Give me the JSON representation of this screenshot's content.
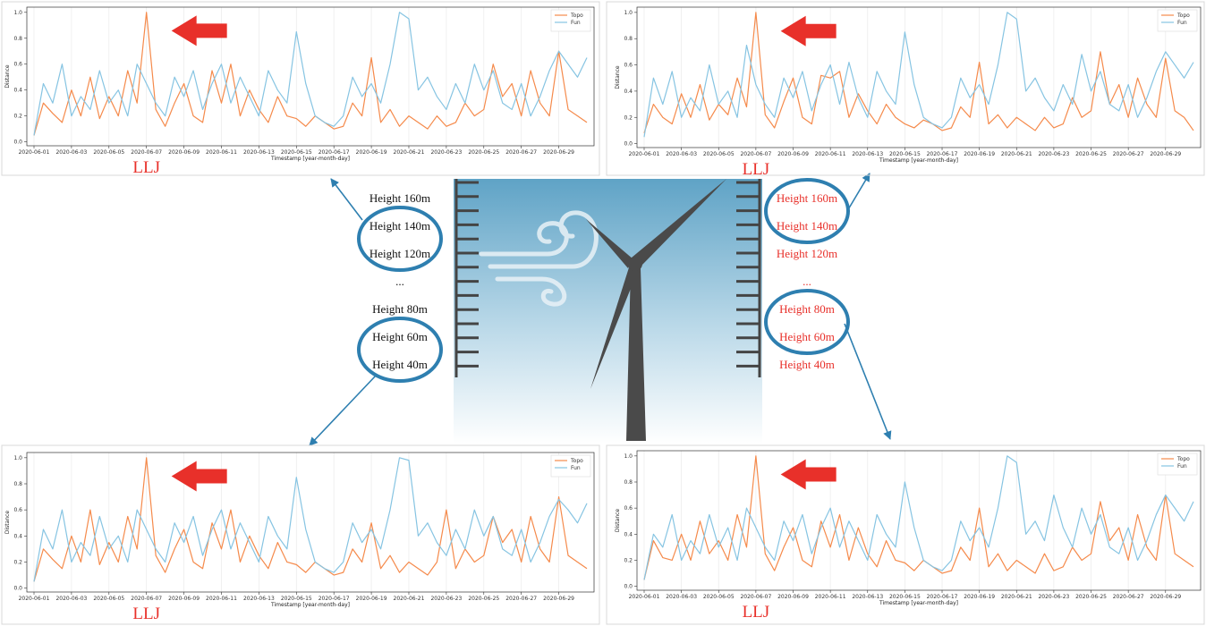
{
  "chart_data": [
    {
      "type": "line",
      "ylabel": "Distance",
      "xlabel": "Timestamp [year-month-day]",
      "annotation": "LLJ",
      "annotation_color": "#e8302a",
      "grid": true,
      "legend": "upper right",
      "categories": [
        "2020-06-01",
        null,
        null,
        null,
        "2020-06-03",
        null,
        null,
        null,
        "2020-06-05",
        null,
        null,
        null,
        "2020-06-07",
        null,
        null,
        null,
        "2020-06-09",
        null,
        null,
        null,
        "2020-06-11",
        null,
        null,
        null,
        "2020-06-13",
        null,
        null,
        null,
        "2020-06-15",
        null,
        null,
        null,
        "2020-06-17",
        null,
        null,
        null,
        "2020-06-19",
        null,
        null,
        null,
        "2020-06-21",
        null,
        null,
        null,
        "2020-06-23",
        null,
        null,
        null,
        "2020-06-25",
        null,
        null,
        null,
        "2020-06-27",
        null,
        null,
        null,
        "2020-06-29",
        null,
        null,
        null
      ],
      "ylim": [
        -0.03,
        1.04
      ],
      "yticks": [
        {
          "value": 0,
          "label": "0.0"
        },
        0.2,
        0.4,
        0.6,
        0.8,
        {
          "value": 1,
          "label": "1.0"
        }
      ],
      "series": [
        {
          "name": "Topo",
          "color": "#f58a4b",
          "values": [
            0.05,
            0.3,
            0.22,
            0.15,
            0.4,
            0.2,
            0.5,
            0.18,
            0.35,
            0.2,
            0.55,
            0.3,
            1.0,
            0.25,
            0.12,
            0.3,
            0.45,
            0.2,
            0.15,
            0.55,
            0.3,
            0.6,
            0.2,
            0.4,
            0.25,
            0.15,
            0.35,
            0.2,
            0.18,
            0.12,
            0.2,
            0.15,
            0.1,
            0.12,
            0.3,
            0.2,
            0.65,
            0.15,
            0.25,
            0.12,
            0.2,
            0.15,
            0.1,
            0.2,
            0.12,
            0.15,
            0.3,
            0.2,
            0.25,
            0.6,
            0.35,
            0.45,
            0.2,
            0.55,
            0.3,
            0.2,
            0.7,
            0.25,
            0.2,
            0.15
          ]
        },
        {
          "name": "Fun",
          "color": "#86c4e2",
          "values": [
            0.05,
            0.45,
            0.3,
            0.6,
            0.2,
            0.35,
            0.25,
            0.55,
            0.3,
            0.4,
            0.2,
            0.6,
            0.45,
            0.3,
            0.2,
            0.5,
            0.35,
            0.55,
            0.25,
            0.45,
            0.6,
            0.3,
            0.5,
            0.35,
            0.2,
            0.55,
            0.4,
            0.3,
            0.85,
            0.45,
            0.2,
            0.15,
            0.12,
            0.2,
            0.5,
            0.35,
            0.45,
            0.3,
            0.6,
            1.0,
            0.95,
            0.4,
            0.5,
            0.35,
            0.25,
            0.45,
            0.3,
            0.6,
            0.4,
            0.55,
            0.3,
            0.25,
            0.45,
            0.2,
            0.35,
            0.55,
            0.7,
            0.6,
            0.5,
            0.65
          ]
        }
      ]
    },
    {
      "type": "line",
      "ylabel": "Distance",
      "xlabel": "Timestamp [year-month-day]",
      "annotation": "LLJ",
      "annotation_color": "#e8302a",
      "grid": true,
      "legend": "upper right",
      "categories": [
        "2020-06-01",
        null,
        null,
        null,
        "2020-06-03",
        null,
        null,
        null,
        "2020-06-05",
        null,
        null,
        null,
        "2020-06-07",
        null,
        null,
        null,
        "2020-06-09",
        null,
        null,
        null,
        "2020-06-11",
        null,
        null,
        null,
        "2020-06-13",
        null,
        null,
        null,
        "2020-06-15",
        null,
        null,
        null,
        "2020-06-17",
        null,
        null,
        null,
        "2020-06-19",
        null,
        null,
        null,
        "2020-06-21",
        null,
        null,
        null,
        "2020-06-23",
        null,
        null,
        null,
        "2020-06-25",
        null,
        null,
        null,
        "2020-06-27",
        null,
        null,
        null,
        "2020-06-29",
        null,
        null,
        null
      ],
      "ylim": [
        -0.03,
        1.04
      ],
      "yticks": [
        {
          "value": 0,
          "label": "0.0"
        },
        0.2,
        0.4,
        0.6,
        0.8,
        {
          "value": 1,
          "label": "1.0"
        }
      ],
      "series": [
        {
          "name": "Topo",
          "color": "#f58a4b",
          "values": [
            0.08,
            0.3,
            0.2,
            0.15,
            0.38,
            0.2,
            0.45,
            0.18,
            0.3,
            0.22,
            0.5,
            0.28,
            1.0,
            0.22,
            0.12,
            0.32,
            0.5,
            0.2,
            0.15,
            0.52,
            0.5,
            0.55,
            0.2,
            0.38,
            0.25,
            0.15,
            0.3,
            0.2,
            0.15,
            0.12,
            0.18,
            0.15,
            0.1,
            0.12,
            0.28,
            0.2,
            0.62,
            0.15,
            0.22,
            0.12,
            0.2,
            0.15,
            0.1,
            0.2,
            0.12,
            0.15,
            0.35,
            0.2,
            0.25,
            0.7,
            0.3,
            0.45,
            0.2,
            0.5,
            0.3,
            0.2,
            0.65,
            0.25,
            0.2,
            0.1
          ]
        },
        {
          "name": "Fun",
          "color": "#86c4e2",
          "values": [
            0.05,
            0.5,
            0.3,
            0.55,
            0.2,
            0.35,
            0.25,
            0.6,
            0.3,
            0.4,
            0.2,
            0.75,
            0.45,
            0.3,
            0.2,
            0.5,
            0.35,
            0.55,
            0.25,
            0.45,
            0.6,
            0.3,
            0.62,
            0.35,
            0.2,
            0.55,
            0.4,
            0.3,
            0.85,
            0.45,
            0.2,
            0.15,
            0.12,
            0.2,
            0.5,
            0.35,
            0.45,
            0.3,
            0.6,
            1.0,
            0.95,
            0.4,
            0.5,
            0.35,
            0.25,
            0.45,
            0.3,
            0.68,
            0.4,
            0.55,
            0.3,
            0.25,
            0.45,
            0.2,
            0.35,
            0.55,
            0.7,
            0.6,
            0.5,
            0.62
          ]
        }
      ]
    },
    {
      "type": "line",
      "ylabel": "Distance",
      "xlabel": "Timestamp [year-month-day]",
      "annotation": "LLJ",
      "annotation_color": "#e8302a",
      "grid": true,
      "legend": "upper right",
      "categories": [
        "2020-06-01",
        null,
        null,
        null,
        "2020-06-03",
        null,
        null,
        null,
        "2020-06-05",
        null,
        null,
        null,
        "2020-06-07",
        null,
        null,
        null,
        "2020-06-09",
        null,
        null,
        null,
        "2020-06-11",
        null,
        null,
        null,
        "2020-06-13",
        null,
        null,
        null,
        "2020-06-15",
        null,
        null,
        null,
        "2020-06-17",
        null,
        null,
        null,
        "2020-06-19",
        null,
        null,
        null,
        "2020-06-21",
        null,
        null,
        null,
        "2020-06-23",
        null,
        null,
        null,
        "2020-06-25",
        null,
        null,
        null,
        "2020-06-27",
        null,
        null,
        null,
        "2020-06-29",
        null,
        null,
        null
      ],
      "ylim": [
        -0.03,
        1.04
      ],
      "yticks": [
        {
          "value": 0,
          "label": "0.0"
        },
        0.2,
        0.4,
        0.6,
        0.8,
        {
          "value": 1,
          "label": "1.0"
        }
      ],
      "series": [
        {
          "name": "Topo",
          "color": "#f58a4b",
          "values": [
            0.05,
            0.3,
            0.22,
            0.15,
            0.4,
            0.2,
            0.6,
            0.18,
            0.35,
            0.2,
            0.55,
            0.3,
            1.0,
            0.25,
            0.12,
            0.3,
            0.45,
            0.2,
            0.15,
            0.5,
            0.3,
            0.6,
            0.2,
            0.4,
            0.25,
            0.15,
            0.35,
            0.2,
            0.18,
            0.12,
            0.2,
            0.15,
            0.1,
            0.12,
            0.3,
            0.2,
            0.5,
            0.15,
            0.25,
            0.12,
            0.2,
            0.15,
            0.1,
            0.2,
            0.6,
            0.15,
            0.3,
            0.2,
            0.25,
            0.55,
            0.35,
            0.45,
            0.2,
            0.55,
            0.3,
            0.2,
            0.7,
            0.25,
            0.2,
            0.15
          ]
        },
        {
          "name": "Fun",
          "color": "#86c4e2",
          "values": [
            0.05,
            0.45,
            0.3,
            0.6,
            0.2,
            0.35,
            0.25,
            0.55,
            0.3,
            0.4,
            0.2,
            0.6,
            0.45,
            0.3,
            0.2,
            0.5,
            0.35,
            0.55,
            0.25,
            0.45,
            0.6,
            0.3,
            0.5,
            0.35,
            0.2,
            0.55,
            0.4,
            0.3,
            0.85,
            0.45,
            0.2,
            0.15,
            0.12,
            0.2,
            0.5,
            0.35,
            0.45,
            0.3,
            0.6,
            1.0,
            0.98,
            0.4,
            0.5,
            0.35,
            0.25,
            0.45,
            0.3,
            0.6,
            0.4,
            0.55,
            0.3,
            0.25,
            0.45,
            0.2,
            0.35,
            0.55,
            0.68,
            0.6,
            0.5,
            0.65
          ]
        }
      ]
    },
    {
      "type": "line",
      "ylabel": "Distance",
      "xlabel": "Timestamp [year-month-day]",
      "annotation": "LLJ",
      "annotation_color": "#e8302a",
      "grid": true,
      "legend": "upper right",
      "categories": [
        "2020-06-01",
        null,
        null,
        null,
        "2020-06-03",
        null,
        null,
        null,
        "2020-06-05",
        null,
        null,
        null,
        "2020-06-07",
        null,
        null,
        null,
        "2020-06-09",
        null,
        null,
        null,
        "2020-06-11",
        null,
        null,
        null,
        "2020-06-13",
        null,
        null,
        null,
        "2020-06-15",
        null,
        null,
        null,
        "2020-06-17",
        null,
        null,
        null,
        "2020-06-19",
        null,
        null,
        null,
        "2020-06-21",
        null,
        null,
        null,
        "2020-06-23",
        null,
        null,
        null,
        "2020-06-25",
        null,
        null,
        null,
        "2020-06-27",
        null,
        null,
        null,
        "2020-06-29",
        null,
        null,
        null
      ],
      "ylim": [
        -0.03,
        1.04
      ],
      "yticks": [
        {
          "value": 0,
          "label": "0.0"
        },
        0.2,
        0.4,
        0.6,
        0.8,
        {
          "value": 1,
          "label": "1.0"
        }
      ],
      "series": [
        {
          "name": "Topo",
          "color": "#f58a4b",
          "values": [
            0.05,
            0.35,
            0.22,
            0.2,
            0.4,
            0.2,
            0.5,
            0.25,
            0.35,
            0.2,
            0.55,
            0.3,
            1.0,
            0.25,
            0.12,
            0.3,
            0.45,
            0.2,
            0.15,
            0.5,
            0.3,
            0.55,
            0.2,
            0.45,
            0.25,
            0.15,
            0.35,
            0.2,
            0.18,
            0.12,
            0.2,
            0.15,
            0.1,
            0.12,
            0.3,
            0.2,
            0.6,
            0.15,
            0.25,
            0.12,
            0.2,
            0.15,
            0.1,
            0.25,
            0.12,
            0.15,
            0.3,
            0.2,
            0.25,
            0.65,
            0.35,
            0.45,
            0.2,
            0.55,
            0.3,
            0.2,
            0.7,
            0.25,
            0.2,
            0.15
          ]
        },
        {
          "name": "Fun",
          "color": "#86c4e2",
          "values": [
            0.05,
            0.4,
            0.3,
            0.55,
            0.2,
            0.35,
            0.25,
            0.55,
            0.3,
            0.45,
            0.2,
            0.6,
            0.45,
            0.3,
            0.2,
            0.5,
            0.35,
            0.55,
            0.25,
            0.45,
            0.6,
            0.3,
            0.5,
            0.35,
            0.2,
            0.55,
            0.4,
            0.3,
            0.8,
            0.45,
            0.2,
            0.15,
            0.12,
            0.2,
            0.5,
            0.35,
            0.45,
            0.3,
            0.6,
            1.0,
            0.95,
            0.4,
            0.5,
            0.35,
            0.7,
            0.45,
            0.3,
            0.6,
            0.4,
            0.55,
            0.3,
            0.25,
            0.45,
            0.2,
            0.35,
            0.55,
            0.7,
            0.6,
            0.5,
            0.65
          ]
        }
      ]
    }
  ],
  "diagram": {
    "left_heights": [
      "Height 160m",
      "Height 140m",
      "Height 120m",
      "...",
      "Height 80m",
      "Height 60m",
      "Height 40m"
    ],
    "right_heights": [
      "Height 160m",
      "Height 140m",
      "Height 120m",
      "...",
      "Height 80m",
      "Height 60m",
      "Height 40m"
    ]
  }
}
